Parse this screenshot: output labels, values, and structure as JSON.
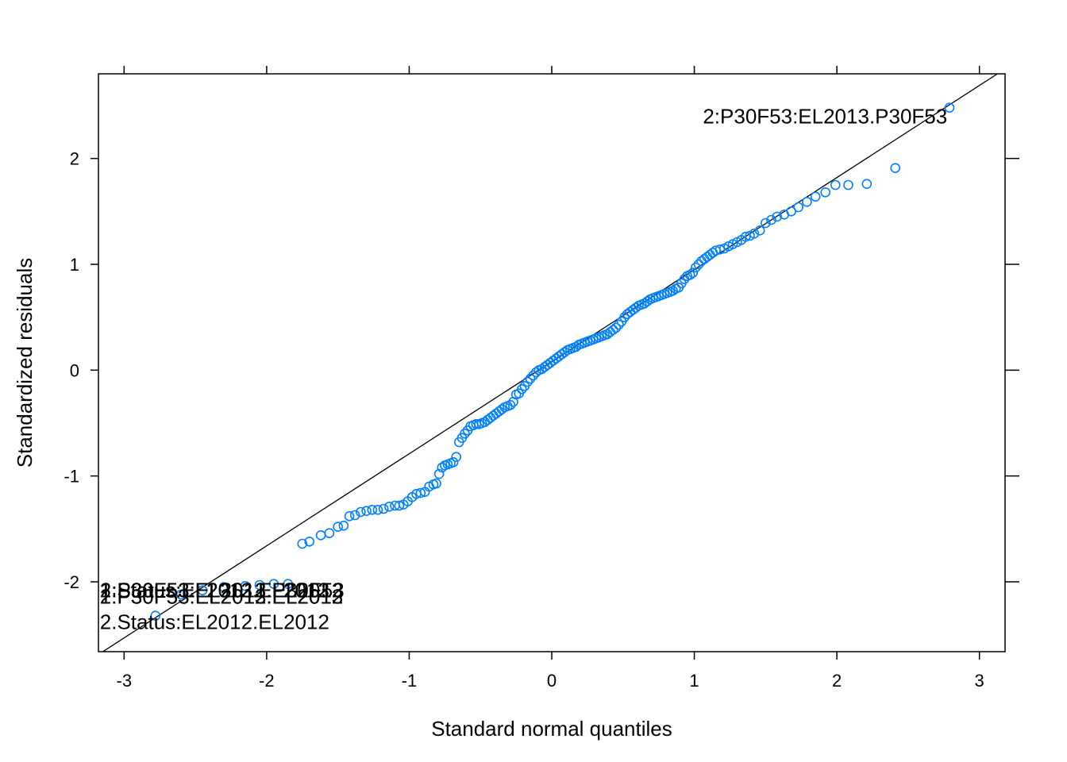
{
  "chart_data": {
    "type": "scatter",
    "title": "",
    "xlabel": "Standard normal quantiles",
    "ylabel": "Standardized residuals",
    "xlim": [
      -3.18,
      3.18
    ],
    "ylim": [
      -2.66,
      2.8
    ],
    "x_ticks": [
      "-3",
      "-2",
      "-1",
      "0",
      "1",
      "2",
      "3"
    ],
    "y_ticks": [
      "-2",
      "-1",
      "0",
      "1",
      "2"
    ],
    "grid": false,
    "legend": "none",
    "point_color": "#0080ff",
    "reference_line": {
      "intercept": 0.08,
      "slope": 0.87
    },
    "points": [
      [
        -2.78,
        -2.32
      ],
      [
        -2.6,
        -2.12
      ],
      [
        -2.45,
        -2.08
      ],
      [
        -2.3,
        -2.05
      ],
      [
        -2.15,
        -2.04
      ],
      [
        -2.05,
        -2.03
      ],
      [
        -1.95,
        -2.02
      ],
      [
        -1.85,
        -2.02
      ],
      [
        -1.75,
        -1.64
      ],
      [
        -1.7,
        -1.62
      ],
      [
        -1.62,
        -1.56
      ],
      [
        -1.56,
        -1.54
      ],
      [
        -1.5,
        -1.48
      ],
      [
        -1.46,
        -1.47
      ],
      [
        -1.42,
        -1.38
      ],
      [
        -1.38,
        -1.37
      ],
      [
        -1.34,
        -1.34
      ],
      [
        -1.3,
        -1.33
      ],
      [
        -1.26,
        -1.32
      ],
      [
        -1.22,
        -1.32
      ],
      [
        -1.18,
        -1.31
      ],
      [
        -1.14,
        -1.29
      ],
      [
        -1.1,
        -1.28
      ],
      [
        -1.07,
        -1.28
      ],
      [
        -1.04,
        -1.27
      ],
      [
        -1.01,
        -1.24
      ],
      [
        -0.98,
        -1.2
      ],
      [
        -0.95,
        -1.17
      ],
      [
        -0.92,
        -1.16
      ],
      [
        -0.89,
        -1.15
      ],
      [
        -0.86,
        -1.1
      ],
      [
        -0.83,
        -1.08
      ],
      [
        -0.81,
        -1.07
      ],
      [
        -0.79,
        -0.98
      ],
      [
        -0.77,
        -0.92
      ],
      [
        -0.75,
        -0.9
      ],
      [
        -0.73,
        -0.89
      ],
      [
        -0.71,
        -0.88
      ],
      [
        -0.69,
        -0.87
      ],
      [
        -0.67,
        -0.82
      ],
      [
        -0.65,
        -0.68
      ],
      [
        -0.63,
        -0.64
      ],
      [
        -0.61,
        -0.6
      ],
      [
        -0.59,
        -0.57
      ],
      [
        -0.57,
        -0.53
      ],
      [
        -0.55,
        -0.52
      ],
      [
        -0.53,
        -0.51
      ],
      [
        -0.51,
        -0.51
      ],
      [
        -0.49,
        -0.5
      ],
      [
        -0.47,
        -0.49
      ],
      [
        -0.45,
        -0.47
      ],
      [
        -0.43,
        -0.45
      ],
      [
        -0.41,
        -0.43
      ],
      [
        -0.39,
        -0.41
      ],
      [
        -0.37,
        -0.39
      ],
      [
        -0.35,
        -0.37
      ],
      [
        -0.33,
        -0.35
      ],
      [
        -0.31,
        -0.34
      ],
      [
        -0.29,
        -0.33
      ],
      [
        -0.27,
        -0.3
      ],
      [
        -0.25,
        -0.23
      ],
      [
        -0.23,
        -0.22
      ],
      [
        -0.21,
        -0.18
      ],
      [
        -0.19,
        -0.15
      ],
      [
        -0.17,
        -0.11
      ],
      [
        -0.15,
        -0.08
      ],
      [
        -0.13,
        -0.05
      ],
      [
        -0.11,
        -0.02
      ],
      [
        -0.09,
        0.0
      ],
      [
        -0.07,
        0.01
      ],
      [
        -0.05,
        0.03
      ],
      [
        -0.03,
        0.05
      ],
      [
        -0.01,
        0.07
      ],
      [
        0.01,
        0.09
      ],
      [
        0.03,
        0.11
      ],
      [
        0.05,
        0.13
      ],
      [
        0.07,
        0.15
      ],
      [
        0.09,
        0.17
      ],
      [
        0.11,
        0.19
      ],
      [
        0.13,
        0.2
      ],
      [
        0.15,
        0.21
      ],
      [
        0.17,
        0.22
      ],
      [
        0.19,
        0.24
      ],
      [
        0.21,
        0.25
      ],
      [
        0.23,
        0.26
      ],
      [
        0.25,
        0.27
      ],
      [
        0.27,
        0.28
      ],
      [
        0.29,
        0.29
      ],
      [
        0.31,
        0.3
      ],
      [
        0.33,
        0.31
      ],
      [
        0.35,
        0.32
      ],
      [
        0.37,
        0.33
      ],
      [
        0.39,
        0.34
      ],
      [
        0.41,
        0.36
      ],
      [
        0.43,
        0.38
      ],
      [
        0.45,
        0.4
      ],
      [
        0.47,
        0.43
      ],
      [
        0.49,
        0.46
      ],
      [
        0.51,
        0.5
      ],
      [
        0.53,
        0.53
      ],
      [
        0.55,
        0.55
      ],
      [
        0.57,
        0.57
      ],
      [
        0.59,
        0.59
      ],
      [
        0.61,
        0.61
      ],
      [
        0.63,
        0.62
      ],
      [
        0.65,
        0.63
      ],
      [
        0.67,
        0.65
      ],
      [
        0.69,
        0.67
      ],
      [
        0.71,
        0.68
      ],
      [
        0.73,
        0.69
      ],
      [
        0.75,
        0.7
      ],
      [
        0.77,
        0.71
      ],
      [
        0.79,
        0.72
      ],
      [
        0.81,
        0.73
      ],
      [
        0.83,
        0.74
      ],
      [
        0.85,
        0.75
      ],
      [
        0.87,
        0.77
      ],
      [
        0.89,
        0.78
      ],
      [
        0.91,
        0.82
      ],
      [
        0.93,
        0.86
      ],
      [
        0.95,
        0.89
      ],
      [
        0.97,
        0.9
      ],
      [
        0.99,
        0.92
      ],
      [
        1.01,
        0.97
      ],
      [
        1.03,
        1.0
      ],
      [
        1.05,
        1.03
      ],
      [
        1.07,
        1.05
      ],
      [
        1.09,
        1.07
      ],
      [
        1.11,
        1.09
      ],
      [
        1.13,
        1.11
      ],
      [
        1.15,
        1.13
      ],
      [
        1.18,
        1.14
      ],
      [
        1.21,
        1.15
      ],
      [
        1.24,
        1.17
      ],
      [
        1.27,
        1.19
      ],
      [
        1.3,
        1.21
      ],
      [
        1.33,
        1.23
      ],
      [
        1.36,
        1.26
      ],
      [
        1.39,
        1.27
      ],
      [
        1.42,
        1.29
      ],
      [
        1.46,
        1.32
      ],
      [
        1.5,
        1.39
      ],
      [
        1.54,
        1.42
      ],
      [
        1.58,
        1.45
      ],
      [
        1.63,
        1.47
      ],
      [
        1.68,
        1.5
      ],
      [
        1.73,
        1.54
      ],
      [
        1.79,
        1.59
      ],
      [
        1.85,
        1.64
      ],
      [
        1.92,
        1.68
      ],
      [
        1.99,
        1.75
      ],
      [
        2.08,
        1.75
      ],
      [
        2.21,
        1.76
      ],
      [
        2.41,
        1.91
      ],
      [
        2.79,
        2.48
      ]
    ],
    "annotations": [
      {
        "text": "2:P30F53:EL2013.P30F53",
        "x": 1.06,
        "y": 2.4,
        "anchor": "start"
      },
      {
        "text": "1:Status:EL2013.EL2013",
        "x": -3.17,
        "y": -2.08,
        "anchor": "start"
      },
      {
        "text": "1:Status:EL2012.EL2012",
        "x": -3.17,
        "y": -2.08,
        "anchor": "start"
      },
      {
        "text": "2:P30F53:EL2013.P30F53",
        "x": -3.17,
        "y": -2.08,
        "anchor": "start"
      },
      {
        "text": "1:P30F53:EL2012.EL2012",
        "x": -3.17,
        "y": -2.08,
        "anchor": "start"
      },
      {
        "text": "2:P30F53:EL2012.EL2012",
        "x": -3.17,
        "y": -2.14,
        "anchor": "start"
      },
      {
        "text": "1:P30F53:EL2013.EL2013",
        "x": -3.17,
        "y": -2.14,
        "anchor": "start"
      },
      {
        "text": "2.Status:EL2012.EL2012",
        "x": -3.17,
        "y": -2.38,
        "anchor": "start"
      }
    ]
  }
}
